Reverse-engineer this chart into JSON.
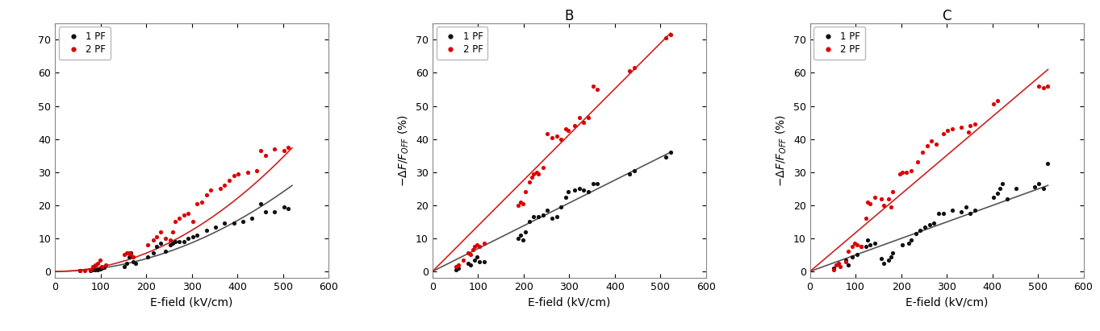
{
  "xlabel": "E-field (kV/cm)",
  "ylabel_BC": "$-\\Delta F/F_{OFF}$ (%)",
  "xlim": [
    0,
    600
  ],
  "ylim": [
    -2,
    75
  ],
  "ylim_A": [
    -2,
    75
  ],
  "xticks": [
    0,
    100,
    200,
    300,
    400,
    500,
    600
  ],
  "yticks": [
    0,
    10,
    20,
    30,
    40,
    50,
    60,
    70
  ],
  "legend_1pf": "1 PF",
  "legend_2pf": "2 PF",
  "color_1pf": "#111111",
  "color_2pf": "#dd0000",
  "fit_color_1pf": "#555555",
  "fit_color_2pf": "#cc2222",
  "A_black_x": [
    55,
    78,
    83,
    88,
    93,
    98,
    103,
    108,
    152,
    157,
    162,
    167,
    172,
    177,
    203,
    215,
    222,
    232,
    242,
    252,
    258,
    263,
    272,
    283,
    292,
    302,
    312,
    332,
    352,
    372,
    392,
    412,
    432,
    452,
    462,
    482,
    502,
    512
  ],
  "A_black_y": [
    0.2,
    0.3,
    0.5,
    0.5,
    0.5,
    0.8,
    1.0,
    1.2,
    1.5,
    2.5,
    4.5,
    5.5,
    3.0,
    2.5,
    4.5,
    5.5,
    7.5,
    8.5,
    6.0,
    8.0,
    8.5,
    9.0,
    9.0,
    9.0,
    10.0,
    10.5,
    11.0,
    12.5,
    13.5,
    14.5,
    14.5,
    15.0,
    16.0,
    20.5,
    18.0,
    18.0,
    19.5,
    19.0
  ],
  "A_red_x": [
    55,
    65,
    78,
    83,
    88,
    93,
    98,
    103,
    112,
    152,
    157,
    162,
    167,
    172,
    203,
    215,
    222,
    232,
    242,
    252,
    258,
    263,
    272,
    283,
    292,
    302,
    312,
    322,
    332,
    342,
    362,
    372,
    382,
    392,
    402,
    422,
    442,
    452,
    462,
    482,
    502,
    512
  ],
  "A_red_y": [
    0.2,
    0.3,
    0.5,
    1.5,
    2.0,
    2.5,
    3.5,
    1.5,
    2.0,
    5.0,
    5.5,
    5.5,
    5.0,
    4.5,
    8.0,
    9.5,
    10.5,
    12.0,
    10.0,
    9.5,
    12.0,
    15.0,
    16.0,
    17.0,
    17.5,
    15.0,
    20.5,
    21.0,
    23.0,
    24.5,
    25.0,
    26.0,
    27.5,
    29.0,
    29.5,
    30.0,
    30.5,
    36.5,
    35.0,
    37.0,
    36.5,
    37.5
  ],
  "A_black_fit_coeffs": [
    0.0,
    0.0,
    9.6e-05
  ],
  "A_red_fit_coeffs": [
    0.0,
    0.0,
    0.000138
  ],
  "B_black_x": [
    52,
    57,
    78,
    83,
    93,
    98,
    103,
    113,
    188,
    193,
    198,
    203,
    213,
    222,
    232,
    242,
    252,
    262,
    272,
    282,
    292,
    297,
    312,
    322,
    332,
    342,
    352,
    362,
    432,
    442,
    512,
    522
  ],
  "B_black_y": [
    0.5,
    1.0,
    2.5,
    2.0,
    3.5,
    4.5,
    3.0,
    3.0,
    10.0,
    11.0,
    9.5,
    12.0,
    15.0,
    16.5,
    16.5,
    17.0,
    18.5,
    16.0,
    16.5,
    19.5,
    22.5,
    24.0,
    24.5,
    25.0,
    24.5,
    24.0,
    26.5,
    26.5,
    29.5,
    30.5,
    34.5,
    36.0
  ],
  "B_red_x": [
    52,
    57,
    68,
    78,
    83,
    88,
    93,
    98,
    103,
    113,
    188,
    193,
    198,
    203,
    213,
    218,
    222,
    228,
    232,
    242,
    252,
    262,
    272,
    282,
    292,
    297,
    312,
    322,
    332,
    342,
    352,
    362,
    432,
    442,
    512,
    522
  ],
  "B_red_y": [
    1.5,
    2.0,
    3.5,
    5.5,
    5.0,
    6.5,
    7.5,
    8.0,
    7.5,
    8.5,
    20.0,
    21.0,
    20.5,
    24.0,
    27.0,
    28.5,
    29.5,
    30.0,
    29.5,
    31.5,
    41.5,
    40.5,
    41.0,
    40.0,
    43.0,
    42.5,
    44.0,
    46.5,
    45.0,
    46.5,
    56.0,
    55.0,
    60.5,
    61.5,
    70.5,
    71.5
  ],
  "B_black_fit": [
    0,
    522
  ],
  "B_black_fit_y": [
    0,
    36
  ],
  "B_red_fit": [
    0,
    522
  ],
  "B_red_fit_y": [
    0,
    72
  ],
  "C_black_x": [
    52,
    78,
    83,
    93,
    103,
    113,
    122,
    127,
    132,
    142,
    157,
    162,
    172,
    177,
    182,
    203,
    217,
    222,
    232,
    242,
    252,
    262,
    272,
    282,
    292,
    312,
    332,
    342,
    352,
    362,
    402,
    412,
    417,
    422,
    432,
    452,
    492,
    502,
    512,
    522
  ],
  "C_black_y": [
    1.0,
    3.5,
    2.0,
    4.5,
    5.0,
    7.5,
    7.5,
    9.5,
    8.0,
    8.5,
    4.0,
    2.5,
    3.5,
    4.5,
    5.5,
    8.0,
    8.5,
    9.5,
    11.5,
    12.5,
    13.5,
    14.0,
    14.5,
    17.5,
    17.5,
    18.5,
    18.0,
    19.5,
    17.5,
    18.5,
    22.5,
    23.5,
    25.0,
    26.5,
    22.0,
    25.0,
    25.5,
    26.5,
    25.0,
    32.5
  ],
  "C_red_x": [
    52,
    57,
    62,
    67,
    78,
    83,
    93,
    98,
    103,
    113,
    122,
    127,
    132,
    142,
    157,
    162,
    172,
    177,
    182,
    197,
    203,
    212,
    222,
    237,
    247,
    257,
    267,
    277,
    292,
    302,
    312,
    332,
    347,
    352,
    362,
    402,
    412,
    502,
    512,
    522
  ],
  "C_red_y": [
    0.5,
    2.0,
    2.5,
    1.5,
    3.0,
    6.0,
    7.5,
    8.5,
    8.0,
    7.5,
    16.0,
    21.0,
    20.5,
    22.5,
    22.0,
    20.0,
    22.0,
    19.5,
    24.0,
    29.5,
    30.0,
    30.0,
    30.5,
    33.0,
    36.0,
    38.0,
    39.5,
    38.5,
    41.5,
    42.5,
    43.0,
    43.5,
    42.0,
    44.0,
    44.5,
    50.5,
    51.5,
    56.0,
    55.5,
    56.0
  ],
  "C_black_fit": [
    0,
    522
  ],
  "C_black_fit_y": [
    0,
    26
  ],
  "C_red_fit": [
    0,
    522
  ],
  "C_red_fit_y": [
    0,
    61
  ]
}
